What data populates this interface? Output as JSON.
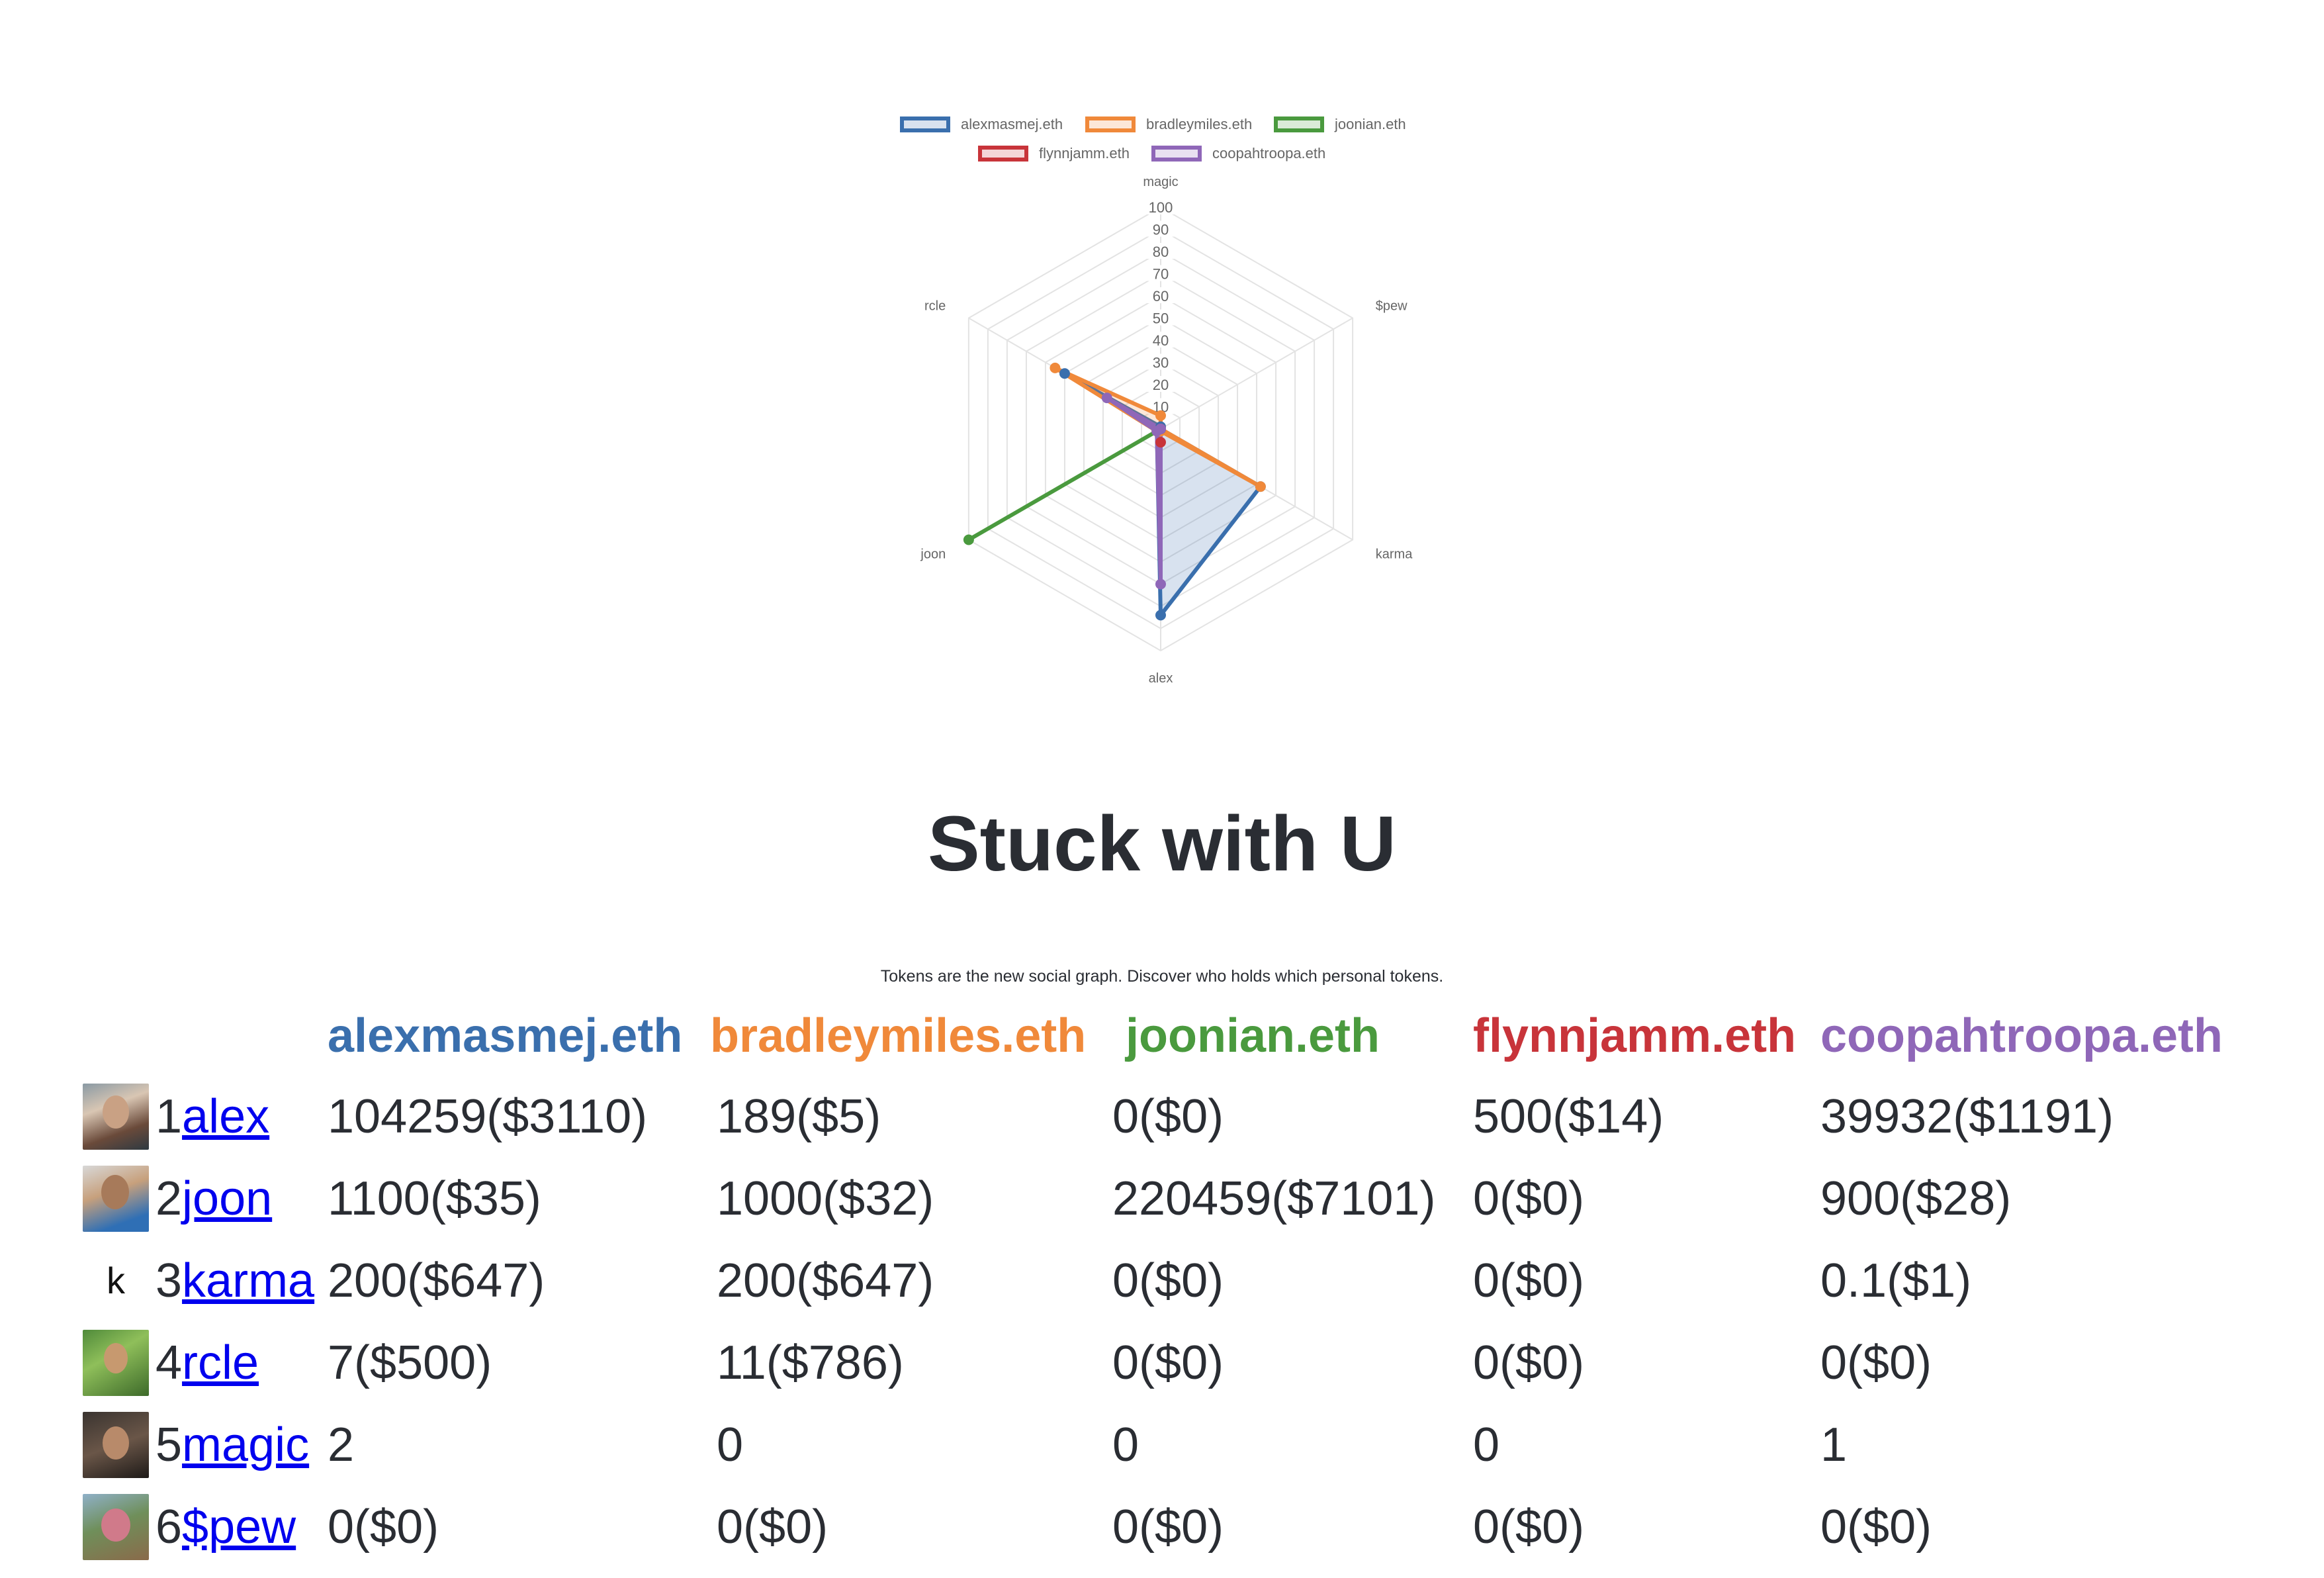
{
  "chart_data": {
    "type": "radar",
    "axes": [
      "magic",
      "$pew",
      "karma",
      "alex",
      "joon",
      "rcle"
    ],
    "r_ticks": [
      "10",
      "20",
      "30",
      "40",
      "50",
      "60",
      "70",
      "80",
      "90",
      "100"
    ],
    "r_range": [
      0,
      100
    ],
    "grid": true,
    "legend_position": "top",
    "series": [
      {
        "name": "alexmasmej.eth",
        "color": "#3a6fad",
        "fill": "rgba(58,111,173,0.2)",
        "values": [
          1,
          0,
          52,
          84,
          2,
          50
        ]
      },
      {
        "name": "bradleymiles.eth",
        "color": "#f0893a",
        "fill": "rgba(240,137,58,0.2)",
        "values": [
          6,
          0,
          52,
          1,
          2,
          55
        ]
      },
      {
        "name": "joonian.eth",
        "color": "#4a9a3e",
        "fill": "rgba(74,154,62,0.2)",
        "values": [
          0,
          0,
          0,
          0,
          100,
          0
        ]
      },
      {
        "name": "flynnjamm.eth",
        "color": "#c8343a",
        "fill": "rgba(200,52,58,0.2)",
        "values": [
          0,
          0,
          0,
          6,
          0,
          0
        ]
      },
      {
        "name": "coopahtroopa.eth",
        "color": "#8f67b8",
        "fill": "rgba(143,103,184,0.2)",
        "values": [
          0,
          0,
          0,
          70,
          2,
          28
        ]
      }
    ]
  },
  "page": {
    "title": "Stuck with U",
    "subtitle": "Tokens are the new social graph. Discover who holds which personal tokens."
  },
  "table": {
    "columns": [
      {
        "name": "alexmasmej.eth",
        "color": "#3a6fad"
      },
      {
        "name": "bradleymiles.eth",
        "color": "#f0893a"
      },
      {
        "name": "joonian.eth",
        "color": "#4a9a3e"
      },
      {
        "name": "flynnjamm.eth",
        "color": "#c8343a"
      },
      {
        "name": "coopahtroopa.eth",
        "color": "#8f67b8"
      }
    ],
    "rows": [
      {
        "rank": "1",
        "user": "alex",
        "avatar": "photo",
        "avatar_letter": "",
        "cells": [
          "104259($3110)",
          "189($5)",
          "0($0)",
          "500($14)",
          "39932($1191)"
        ]
      },
      {
        "rank": "2",
        "user": "joon",
        "avatar": "blue",
        "avatar_letter": "",
        "cells": [
          "1100($35)",
          "1000($32)",
          "220459($7101)",
          "0($0)",
          "900($28)"
        ]
      },
      {
        "rank": "3",
        "user": "karma",
        "avatar": "letter",
        "avatar_letter": "k",
        "cells": [
          "200($647)",
          "200($647)",
          "0($0)",
          "0($0)",
          "0.1($1)"
        ]
      },
      {
        "rank": "4",
        "user": "rcle",
        "avatar": "green",
        "avatar_letter": "",
        "cells": [
          "7($500)",
          "11($786)",
          "0($0)",
          "0($0)",
          "0($0)"
        ]
      },
      {
        "rank": "5",
        "user": "magic",
        "avatar": "dark",
        "avatar_letter": "",
        "cells": [
          "2",
          "0",
          "0",
          "0",
          "1"
        ]
      },
      {
        "rank": "6",
        "user": "$pew",
        "avatar": "field",
        "avatar_letter": "",
        "cells": [
          "0($0)",
          "0($0)",
          "0($0)",
          "0($0)",
          "0($0)"
        ]
      }
    ]
  }
}
